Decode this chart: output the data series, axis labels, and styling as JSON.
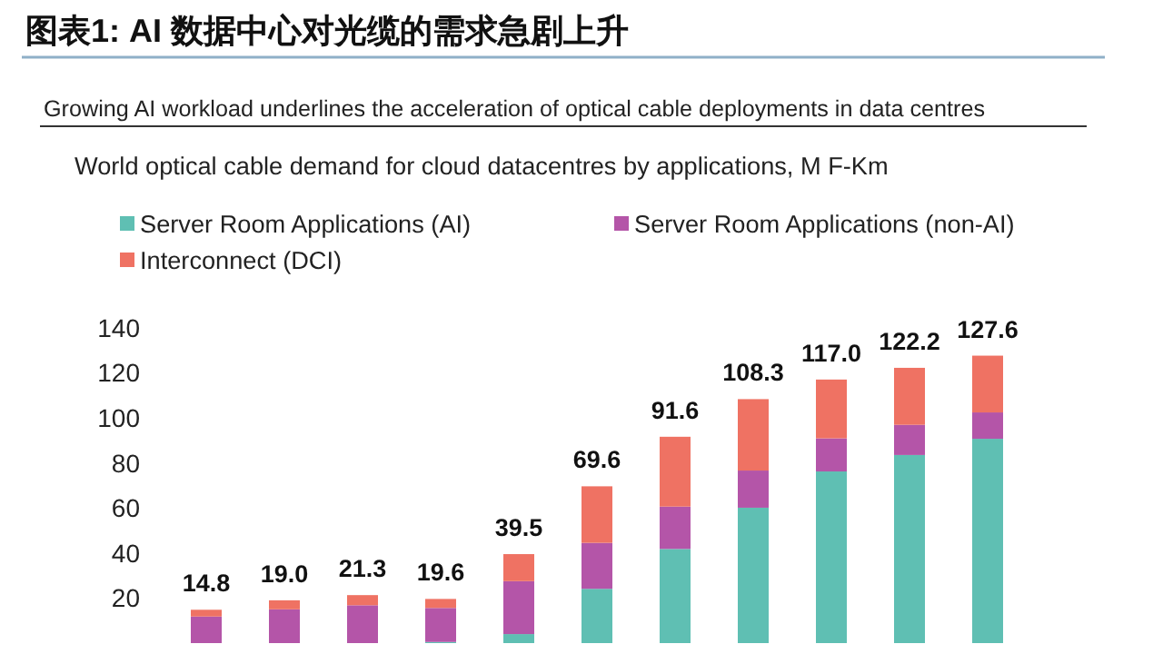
{
  "chart_data": {
    "type": "bar",
    "title": "图表1:  AI 数据中心对光缆的需求急剧上升",
    "subtitle": "Growing AI workload underlines the acceleration of optical cable deployments in data centres",
    "annotations": [
      "World optical cable demand for cloud datacentres by applications, M F-Km"
    ],
    "categories": [
      null,
      null,
      null,
      null,
      null,
      null,
      null,
      null,
      null,
      null,
      null
    ],
    "stacked": true,
    "series": [
      {
        "name": "Server Room Applications (AI)",
        "color": "#5fbfb3",
        "values": [
          0,
          0,
          0,
          0.5,
          4.0,
          24.1,
          41.8,
          60.1,
          76.2,
          83.5,
          90.7
        ]
      },
      {
        "name": "Server Room Applications (non-AI)",
        "color": "#b455a8",
        "values": [
          11.8,
          15.0,
          16.8,
          15.1,
          23.5,
          20.4,
          18.8,
          16.5,
          14.7,
          13.4,
          11.7
        ]
      },
      {
        "name": "Interconnect (DCI)",
        "color": "#ef7263",
        "values": [
          3.0,
          4.0,
          4.5,
          4.0,
          12.0,
          25.1,
          31.0,
          31.7,
          26.1,
          25.3,
          25.2
        ]
      }
    ],
    "totals": [
      "14.8",
      "19.0",
      "21.3",
      "19.6",
      "39.5",
      "69.6",
      "91.6",
      "108.3",
      "117.0",
      "122.2",
      "127.6"
    ],
    "ylim": [
      0,
      140
    ],
    "yticks": [
      20,
      40,
      60,
      80,
      100,
      120,
      140
    ],
    "tick_labels": "y",
    "legend": "top left",
    "grid": false
  }
}
